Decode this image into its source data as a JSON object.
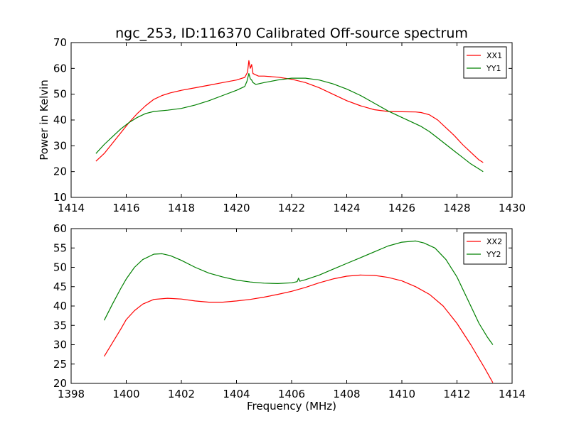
{
  "figure": {
    "title": "ngc_253, ID:116370 Calibrated Off-source spectrum",
    "xlabel": "Frequency (MHz)",
    "ylabel": "Power in Kelvin"
  },
  "colors": {
    "red": "#ff0000",
    "green": "#008000"
  },
  "chart_data": [
    {
      "type": "line",
      "title": "ngc_253, ID:116370 Calibrated Off-source spectrum",
      "xlabel": "",
      "ylabel": "Power in Kelvin",
      "xlim": [
        1414,
        1430
      ],
      "ylim": [
        10,
        70
      ],
      "xticks": [
        "1414",
        "1416",
        "1418",
        "1420",
        "1422",
        "1424",
        "1426",
        "1428",
        "1430"
      ],
      "yticks": [
        "10",
        "20",
        "30",
        "40",
        "50",
        "60",
        "70"
      ],
      "grid": false,
      "legend": "top-right",
      "series": [
        {
          "name": "XX1",
          "color": "#ff0000",
          "x": [
            1414.9,
            1415.2,
            1415.5,
            1415.8,
            1416.1,
            1416.4,
            1416.7,
            1417.0,
            1417.3,
            1417.6,
            1418.0,
            1418.5,
            1419.0,
            1419.5,
            1420.0,
            1420.3,
            1420.4,
            1420.45,
            1420.5,
            1420.55,
            1420.6,
            1420.7,
            1420.8,
            1421.0,
            1421.5,
            1422.0,
            1422.5,
            1423.0,
            1423.5,
            1424.0,
            1424.5,
            1425.0,
            1425.5,
            1426.0,
            1426.5,
            1426.7,
            1427.0,
            1427.3,
            1427.6,
            1427.9,
            1428.2,
            1428.5,
            1428.8,
            1428.95
          ],
          "y": [
            24,
            27,
            31,
            35,
            39,
            42.5,
            45.5,
            48,
            49.5,
            50.5,
            51.5,
            52.5,
            53.5,
            54.5,
            55.5,
            56.5,
            58.5,
            63,
            60,
            61.5,
            58,
            57.5,
            57,
            57,
            56.6,
            55.8,
            54.5,
            52.5,
            50,
            47.5,
            45.5,
            44,
            43.3,
            43.2,
            43.1,
            42.9,
            42,
            40,
            37,
            34,
            30.5,
            27.5,
            24.5,
            23.5
          ]
        },
        {
          "name": "YY1",
          "color": "#008000",
          "x": [
            1414.9,
            1415.2,
            1415.5,
            1415.8,
            1416.1,
            1416.4,
            1416.7,
            1417.0,
            1417.5,
            1418.0,
            1418.5,
            1419.0,
            1419.5,
            1420.0,
            1420.3,
            1420.38,
            1420.45,
            1420.5,
            1420.55,
            1420.6,
            1420.7,
            1421.0,
            1421.5,
            1422.0,
            1422.5,
            1423.0,
            1423.5,
            1424.0,
            1424.5,
            1425.0,
            1425.5,
            1426.0,
            1426.5,
            1426.7,
            1427.0,
            1427.3,
            1427.6,
            1427.9,
            1428.2,
            1428.5,
            1428.8,
            1428.95
          ],
          "y": [
            27,
            30.5,
            33.5,
            36.5,
            39,
            41,
            42.5,
            43.3,
            43.8,
            44.5,
            45.8,
            47.5,
            49.5,
            51.5,
            53,
            55,
            58,
            56,
            55.5,
            54.5,
            53.8,
            54.5,
            55.5,
            56.2,
            56.2,
            55.5,
            54,
            52,
            49.5,
            46.5,
            43.5,
            41,
            38.5,
            37.5,
            35.5,
            33,
            30.5,
            28,
            25.5,
            23,
            21,
            20
          ]
        }
      ]
    },
    {
      "type": "line",
      "title": "",
      "xlabel": "Frequency (MHz)",
      "ylabel": "",
      "xlim": [
        1398,
        1414
      ],
      "ylim": [
        20,
        60
      ],
      "xticks": [
        "1398",
        "1400",
        "1402",
        "1404",
        "1406",
        "1408",
        "1410",
        "1412",
        "1414"
      ],
      "yticks": [
        "20",
        "25",
        "30",
        "35",
        "40",
        "45",
        "50",
        "55",
        "60"
      ],
      "grid": false,
      "legend": "top-right",
      "series": [
        {
          "name": "XX2",
          "color": "#ff0000",
          "x": [
            1399.2,
            1399.5,
            1399.8,
            1400.0,
            1400.3,
            1400.6,
            1401.0,
            1401.5,
            1402.0,
            1402.5,
            1403.0,
            1403.5,
            1404.0,
            1404.5,
            1405.0,
            1405.5,
            1406.0,
            1406.5,
            1407.0,
            1407.5,
            1408.0,
            1408.5,
            1409.0,
            1409.5,
            1410.0,
            1410.5,
            1411.0,
            1411.5,
            1412.0,
            1412.5,
            1413.0,
            1413.3
          ],
          "y": [
            27,
            30.5,
            34,
            36.5,
            38.8,
            40.5,
            41.7,
            42,
            41.8,
            41.3,
            41,
            41,
            41.3,
            41.7,
            42.3,
            43,
            43.8,
            44.8,
            46,
            47,
            47.7,
            48,
            47.9,
            47.4,
            46.5,
            45,
            43,
            40,
            35.5,
            30,
            24,
            20.2
          ]
        },
        {
          "name": "YY2",
          "color": "#008000",
          "x": [
            1399.2,
            1399.5,
            1399.8,
            1400.0,
            1400.3,
            1400.6,
            1401.0,
            1401.3,
            1401.6,
            1402.0,
            1402.5,
            1403.0,
            1403.5,
            1404.0,
            1404.5,
            1405.0,
            1405.5,
            1406.0,
            1406.2,
            1406.25,
            1406.3,
            1406.5,
            1407.0,
            1407.5,
            1408.0,
            1408.5,
            1409.0,
            1409.5,
            1410.0,
            1410.5,
            1410.8,
            1411.2,
            1411.6,
            1412.0,
            1412.4,
            1412.8,
            1413.1,
            1413.3
          ],
          "y": [
            36.3,
            40.5,
            44.5,
            47,
            50,
            52,
            53.4,
            53.5,
            53,
            51.8,
            50,
            48.5,
            47.5,
            46.7,
            46.2,
            45.9,
            45.8,
            46,
            46.3,
            47.2,
            46.4,
            46.8,
            48,
            49.5,
            51,
            52.5,
            54,
            55.5,
            56.5,
            56.8,
            56.3,
            55,
            52,
            47.5,
            41.5,
            35.5,
            32,
            30
          ]
        }
      ]
    }
  ]
}
